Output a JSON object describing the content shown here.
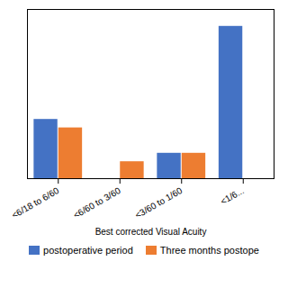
{
  "chart_data": {
    "type": "bar",
    "xlabel": "Best corrected Visual Acuity",
    "categories": [
      "<6/18 to 6/60",
      "<6/60 to 3/60",
      "<3/60 to 1/60",
      "<1/6..."
    ],
    "series": [
      {
        "name": "postoperative period",
        "color": "#4472C4",
        "values": [
          7,
          0,
          3,
          18
        ]
      },
      {
        "name": "Three months postope",
        "color": "#ED7D31",
        "values": [
          6,
          2,
          3,
          0
        ]
      }
    ],
    "ylim": [
      0,
      20
    ],
    "yticks": [],
    "grid": false,
    "tick_labels": "x",
    "legend": "bottom"
  }
}
